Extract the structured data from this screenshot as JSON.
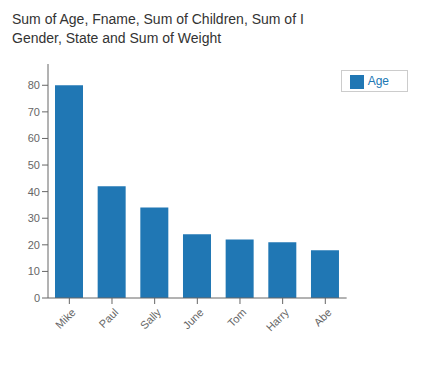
{
  "chart_data": {
    "type": "bar",
    "title": "Sum of Age, Fname, Sum of Children, Sum of I",
    "subtitle": "Gender, State and Sum of Weight",
    "categories": [
      "Mike",
      "Paul",
      "Sally",
      "June",
      "Tom",
      "Harry",
      "Abe"
    ],
    "series": [
      {
        "name": "Age",
        "color": "#2077b4",
        "values": [
          80,
          42,
          34,
          24,
          22,
          21,
          18
        ]
      }
    ],
    "ylim": [
      0,
      88
    ],
    "yticks": [
      0,
      10,
      20,
      30,
      40,
      50,
      60,
      70,
      80
    ],
    "grid": false,
    "legend": "upper right"
  }
}
